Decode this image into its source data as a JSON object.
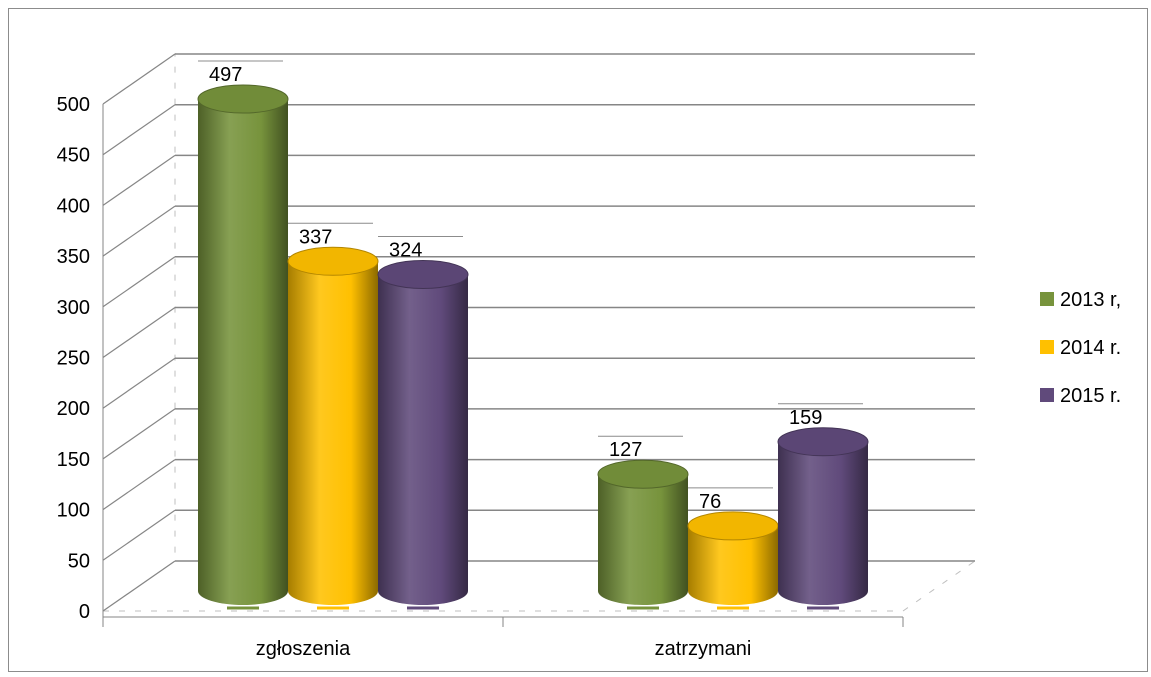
{
  "chart_data": {
    "type": "bar",
    "style": "3d-cylinder",
    "categories": [
      "zgłoszenia",
      "zatrzymani"
    ],
    "series": [
      {
        "name": "2013 r,",
        "values": [
          497,
          127
        ],
        "color": "#77933c"
      },
      {
        "name": "2014 r.",
        "values": [
          337,
          76
        ],
        "color": "#ffc000"
      },
      {
        "name": "2015 r.",
        "values": [
          324,
          159
        ],
        "color": "#604a7b"
      }
    ],
    "ylim": [
      0,
      500
    ],
    "yticks": [
      "0",
      "50",
      "100",
      "150",
      "200",
      "250",
      "300",
      "350",
      "400",
      "450",
      "500"
    ],
    "grid": true,
    "legend": "right",
    "data_labels": true
  }
}
